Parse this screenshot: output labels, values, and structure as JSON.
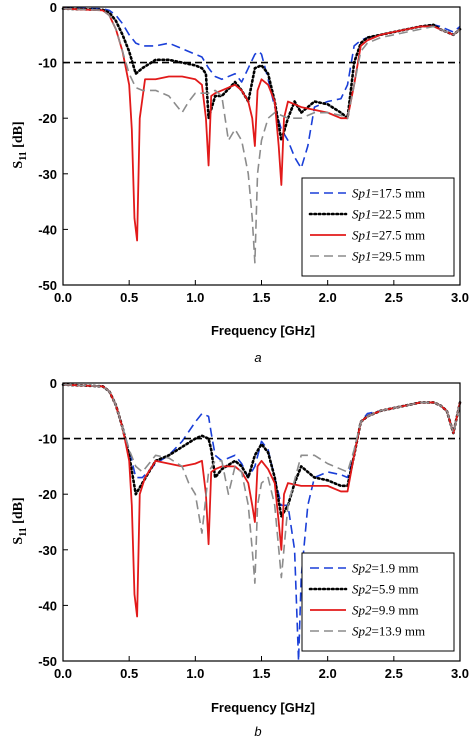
{
  "chart_data": [
    {
      "panel": "a",
      "type": "line",
      "caption": "a",
      "xlabel": "Frequency [GHz]",
      "ylabel_main": "S",
      "ylabel_sub": "11",
      "ylabel_unit": " [dB]",
      "xlim": [
        0.0,
        3.0
      ],
      "ylim": [
        -50,
        0
      ],
      "xticks": [
        "0.0",
        "0.5",
        "1.0",
        "1.5",
        "2.0",
        "2.5",
        "3.0"
      ],
      "yticks": [
        "0",
        "-10",
        "-20",
        "-30",
        "-40",
        "-50"
      ],
      "reference_line": -10,
      "legend_position": "lower-right",
      "series": [
        {
          "name_param": "Sp1",
          "name_value": "=17.5 mm",
          "color": "#1a3fd8",
          "style": "dash",
          "x": [
            0,
            0.3,
            0.35,
            0.4,
            0.45,
            0.5,
            0.55,
            0.6,
            0.7,
            0.8,
            0.9,
            1.0,
            1.05,
            1.1,
            1.15,
            1.2,
            1.3,
            1.35,
            1.4,
            1.45,
            1.48,
            1.5,
            1.55,
            1.6,
            1.65,
            1.7,
            1.75,
            1.8,
            1.85,
            1.9,
            2.0,
            2.1,
            2.15,
            2.2,
            2.25,
            2.3,
            2.4,
            2.5,
            2.6,
            2.7,
            2.8,
            2.85,
            2.9,
            2.95,
            3.0
          ],
          "y": [
            -0.2,
            -0.3,
            -0.6,
            -1.5,
            -3,
            -5,
            -6.5,
            -7,
            -7,
            -6.5,
            -7.5,
            -8.5,
            -9,
            -11,
            -12.5,
            -13,
            -12,
            -13.5,
            -11,
            -8.5,
            -8,
            -8.5,
            -13,
            -18,
            -22,
            -24,
            -27,
            -29,
            -25,
            -18,
            -17,
            -16.5,
            -14,
            -7,
            -6,
            -5.5,
            -5,
            -4.5,
            -4,
            -3.5,
            -3.2,
            -3.5,
            -4,
            -4.5,
            -3.5
          ]
        },
        {
          "name_param": "Sp1",
          "name_value": "=22.5 mm",
          "color": "#000000",
          "style": "dot",
          "x": [
            0,
            0.3,
            0.35,
            0.4,
            0.45,
            0.5,
            0.55,
            0.6,
            0.7,
            0.8,
            0.9,
            1.0,
            1.05,
            1.08,
            1.1,
            1.15,
            1.2,
            1.3,
            1.35,
            1.4,
            1.45,
            1.5,
            1.55,
            1.6,
            1.65,
            1.7,
            1.75,
            1.8,
            1.85,
            1.9,
            2.0,
            2.1,
            2.15,
            2.2,
            2.25,
            2.3,
            2.4,
            2.5,
            2.6,
            2.7,
            2.8,
            2.85,
            2.9,
            2.95,
            3.0
          ],
          "y": [
            -0.3,
            -0.5,
            -1,
            -2.5,
            -5,
            -8,
            -12,
            -11,
            -9.5,
            -9.5,
            -10,
            -10.5,
            -11,
            -12,
            -20,
            -16,
            -16,
            -13.5,
            -15,
            -17,
            -11,
            -10.5,
            -12,
            -17,
            -24,
            -20,
            -17,
            -19,
            -18,
            -17,
            -17.5,
            -19,
            -20,
            -10,
            -6.5,
            -5.5,
            -5,
            -4.5,
            -4,
            -3.5,
            -3.2,
            -4,
            -4.5,
            -5,
            -4
          ]
        },
        {
          "name_param": "Sp1",
          "name_value": "=27.5 mm",
          "color": "#e21a1a",
          "style": "solid",
          "x": [
            0,
            0.3,
            0.35,
            0.4,
            0.45,
            0.5,
            0.52,
            0.54,
            0.56,
            0.58,
            0.62,
            0.7,
            0.8,
            0.9,
            1.0,
            1.05,
            1.08,
            1.1,
            1.12,
            1.15,
            1.2,
            1.3,
            1.35,
            1.4,
            1.43,
            1.45,
            1.47,
            1.5,
            1.55,
            1.6,
            1.63,
            1.65,
            1.67,
            1.7,
            1.8,
            1.9,
            2.0,
            2.1,
            2.15,
            2.2,
            2.25,
            2.3,
            2.4,
            2.5,
            2.6,
            2.7,
            2.8,
            2.85,
            2.9,
            2.95,
            3.0
          ],
          "y": [
            -0.3,
            -0.6,
            -1.5,
            -4,
            -8,
            -14,
            -22,
            -38,
            -42,
            -20,
            -13,
            -13,
            -12.5,
            -12.5,
            -13,
            -14,
            -20,
            -28.5,
            -16,
            -15.5,
            -15,
            -14,
            -15,
            -17,
            -20,
            -25,
            -15,
            -13,
            -14,
            -17,
            -25,
            -32,
            -20,
            -17,
            -18,
            -18.5,
            -19,
            -20,
            -20,
            -14,
            -7,
            -6,
            -5,
            -4.5,
            -4,
            -3.5,
            -3.5,
            -4,
            -4.5,
            -5,
            -4
          ]
        },
        {
          "name_param": "Sp1",
          "name_value": "=29.5 mm",
          "color": "#8c8c8c",
          "style": "dash",
          "x": [
            0,
            0.3,
            0.35,
            0.4,
            0.45,
            0.5,
            0.55,
            0.6,
            0.7,
            0.8,
            0.9,
            0.95,
            1.0,
            1.05,
            1.1,
            1.15,
            1.2,
            1.25,
            1.3,
            1.35,
            1.4,
            1.43,
            1.45,
            1.47,
            1.5,
            1.55,
            1.6,
            1.65,
            1.7,
            1.8,
            1.9,
            2.0,
            2.1,
            2.15,
            2.2,
            2.25,
            2.3,
            2.4,
            2.5,
            2.6,
            2.7,
            2.8,
            2.85,
            2.9,
            2.95,
            3.0
          ],
          "y": [
            -0.3,
            -0.6,
            -1.5,
            -4,
            -8,
            -12,
            -14.5,
            -15,
            -15,
            -16,
            -19,
            -17,
            -15.5,
            -15.5,
            -15.5,
            -15,
            -16,
            -24,
            -22,
            -24,
            -30,
            -38,
            -46,
            -30,
            -24,
            -20,
            -19,
            -19.5,
            -20,
            -20,
            -19,
            -19,
            -19.5,
            -20,
            -14,
            -8,
            -6.5,
            -5.5,
            -5,
            -4.5,
            -4,
            -3.5,
            -4,
            -4.5,
            -5,
            -4
          ]
        }
      ]
    },
    {
      "panel": "b",
      "type": "line",
      "caption": "b",
      "xlabel": "Frequency [GHz]",
      "ylabel_main": "S",
      "ylabel_sub": "11",
      "ylabel_unit": " [dB]",
      "xlim": [
        0.0,
        3.0
      ],
      "ylim": [
        -50,
        0
      ],
      "xticks": [
        "0.0",
        "0.5",
        "1.0",
        "1.5",
        "2.0",
        "2.5",
        "3.0"
      ],
      "yticks": [
        "0",
        "-10",
        "-20",
        "-30",
        "-40",
        "-50"
      ],
      "reference_line": -10,
      "legend_position": "lower-right",
      "series": [
        {
          "name_param": "Sp2",
          "name_value": "=1.9 mm",
          "color": "#1a3fd8",
          "style": "dash",
          "x": [
            0,
            0.3,
            0.35,
            0.4,
            0.45,
            0.5,
            0.55,
            0.6,
            0.7,
            0.8,
            0.9,
            1.0,
            1.05,
            1.1,
            1.12,
            1.15,
            1.2,
            1.3,
            1.35,
            1.4,
            1.45,
            1.5,
            1.55,
            1.6,
            1.65,
            1.7,
            1.75,
            1.78,
            1.8,
            1.85,
            1.9,
            2.0,
            2.1,
            2.15,
            2.2,
            2.25,
            2.3,
            2.4,
            2.5,
            2.6,
            2.7,
            2.8,
            2.85,
            2.9,
            2.95,
            3.0
          ],
          "y": [
            -0.3,
            -0.6,
            -1.5,
            -4,
            -8,
            -12,
            -17,
            -17,
            -14.5,
            -13,
            -10.5,
            -7,
            -5.5,
            -6,
            -9,
            -13,
            -14,
            -13,
            -14.5,
            -17,
            -15,
            -10.5,
            -12,
            -17,
            -22,
            -22,
            -30,
            -50,
            -35,
            -22,
            -17,
            -16,
            -16.5,
            -17,
            -13,
            -7,
            -5.5,
            -5,
            -4.5,
            -4,
            -3.5,
            -3.5,
            -4,
            -5,
            -9,
            -3.5
          ]
        },
        {
          "name_param": "Sp2",
          "name_value": "=5.9 mm",
          "color": "#000000",
          "style": "dot",
          "x": [
            0,
            0.3,
            0.35,
            0.4,
            0.45,
            0.5,
            0.55,
            0.6,
            0.7,
            0.8,
            0.9,
            1.0,
            1.05,
            1.1,
            1.12,
            1.15,
            1.2,
            1.3,
            1.35,
            1.4,
            1.45,
            1.5,
            1.55,
            1.6,
            1.65,
            1.7,
            1.75,
            1.8,
            1.9,
            2.0,
            2.1,
            2.15,
            2.2,
            2.25,
            2.3,
            2.4,
            2.5,
            2.6,
            2.7,
            2.8,
            2.85,
            2.9,
            2.95,
            3.0
          ],
          "y": [
            -0.3,
            -0.6,
            -1.5,
            -4,
            -8,
            -13,
            -20,
            -18,
            -14,
            -13,
            -11.5,
            -10,
            -9.5,
            -10,
            -12,
            -17,
            -15.5,
            -14,
            -15,
            -17,
            -13,
            -11,
            -12.5,
            -17,
            -24,
            -22,
            -18,
            -15,
            -17,
            -17.5,
            -18.5,
            -18.5,
            -13,
            -7,
            -6,
            -5,
            -4.5,
            -4,
            -3.5,
            -3.5,
            -4,
            -5,
            -9,
            -3.5
          ]
        },
        {
          "name_param": "Sp2",
          "name_value": "=9.9 mm",
          "color": "#e21a1a",
          "style": "solid",
          "x": [
            0,
            0.3,
            0.35,
            0.4,
            0.45,
            0.5,
            0.52,
            0.54,
            0.56,
            0.58,
            0.62,
            0.7,
            0.8,
            0.9,
            1.0,
            1.05,
            1.08,
            1.1,
            1.12,
            1.15,
            1.2,
            1.3,
            1.35,
            1.4,
            1.43,
            1.45,
            1.47,
            1.5,
            1.55,
            1.6,
            1.63,
            1.65,
            1.67,
            1.7,
            1.8,
            1.9,
            2.0,
            2.1,
            2.15,
            2.2,
            2.25,
            2.3,
            2.4,
            2.5,
            2.6,
            2.7,
            2.8,
            2.85,
            2.9,
            2.95,
            3.0
          ],
          "y": [
            -0.3,
            -0.6,
            -1.5,
            -4,
            -8,
            -14,
            -22,
            -38,
            -42,
            -20,
            -17,
            -14,
            -14.5,
            -15,
            -14.5,
            -14,
            -20,
            -29,
            -16,
            -15.5,
            -15,
            -15,
            -16,
            -18,
            -22,
            -25,
            -15,
            -14,
            -15.5,
            -18,
            -25,
            -30,
            -20,
            -18,
            -18.5,
            -18.5,
            -18.5,
            -19.5,
            -19.5,
            -13,
            -7,
            -6,
            -5,
            -4.5,
            -4,
            -3.5,
            -3.5,
            -4,
            -5,
            -9,
            -3.5
          ]
        },
        {
          "name_param": "Sp2",
          "name_value": "=13.9 mm",
          "color": "#8c8c8c",
          "style": "dash",
          "x": [
            0,
            0.3,
            0.35,
            0.4,
            0.45,
            0.5,
            0.55,
            0.6,
            0.7,
            0.8,
            0.9,
            0.95,
            1.0,
            1.05,
            1.1,
            1.15,
            1.2,
            1.25,
            1.3,
            1.35,
            1.4,
            1.43,
            1.45,
            1.47,
            1.5,
            1.55,
            1.6,
            1.65,
            1.7,
            1.8,
            1.9,
            2.0,
            2.1,
            2.15,
            2.2,
            2.25,
            2.3,
            2.4,
            2.5,
            2.6,
            2.7,
            2.8,
            2.85,
            2.9,
            2.95,
            3.0
          ],
          "y": [
            -0.3,
            -0.6,
            -1.5,
            -4,
            -8,
            -12,
            -15,
            -16,
            -13,
            -13.5,
            -15,
            -18,
            -20,
            -27,
            -16,
            -14,
            -14,
            -20,
            -15,
            -16,
            -22,
            -30,
            -36,
            -22,
            -18,
            -17,
            -22,
            -35,
            -22,
            -13,
            -13,
            -14.5,
            -15.5,
            -16,
            -12,
            -7,
            -6,
            -5,
            -4.5,
            -4,
            -3.5,
            -3.5,
            -4,
            -5,
            -9,
            -3.5
          ]
        }
      ]
    }
  ]
}
